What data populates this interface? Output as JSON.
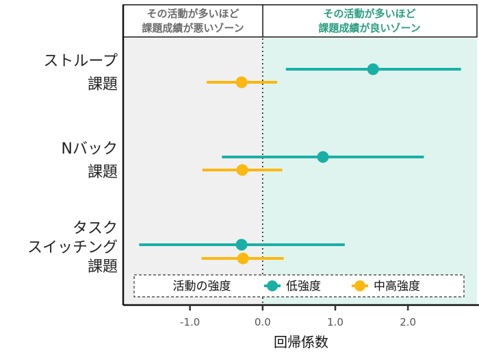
{
  "chart_data": {
    "type": "forest",
    "xlabel": "回帰係数",
    "xlim": [
      -1.92,
      2.95
    ],
    "xticks": [
      -1.0,
      0.0,
      1.0,
      2.0
    ],
    "xtick_labels": [
      "-1.0",
      "0.0",
      "1.0",
      "2.0"
    ],
    "reference_line": 0,
    "grid": false,
    "zones": {
      "negative": {
        "label_line1": "その活動が多いほど",
        "label_line2": "課題成績が悪いゾーン",
        "color": "#f0f0f0",
        "text_color": "#6b6b6b"
      },
      "positive": {
        "label_line1": "その活動が多いほど",
        "label_line2": "課題成績が良いゾーン",
        "color": "#dff4ee",
        "text_color": "#2a9d80"
      }
    },
    "categories": [
      {
        "label_lines": [
          "ストループ",
          "課題"
        ]
      },
      {
        "label_lines": [
          "Nバック",
          "課題"
        ]
      },
      {
        "label_lines": [
          "タスク",
          "スイッチング",
          "課題"
        ]
      }
    ],
    "legend": {
      "title": "活動の強度",
      "placement": "bottom-inside"
    },
    "series": [
      {
        "name": "低強度",
        "color": "#1aafa5",
        "estimates": [
          1.52,
          0.83,
          -0.29
        ],
        "ci_low": [
          0.32,
          -0.56,
          -1.7
        ],
        "ci_high": [
          2.73,
          2.22,
          1.13
        ]
      },
      {
        "name": "中高強度",
        "color": "#fbb810",
        "estimates": [
          -0.29,
          -0.28,
          -0.27
        ],
        "ci_low": [
          -0.77,
          -0.83,
          -0.84
        ],
        "ci_high": [
          0.2,
          0.27,
          0.29
        ]
      }
    ]
  }
}
